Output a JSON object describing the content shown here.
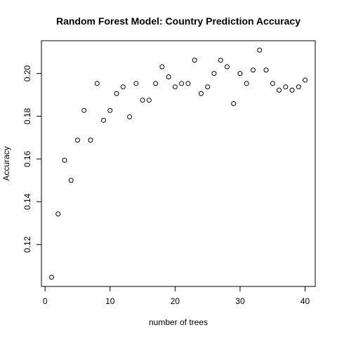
{
  "chart_data": {
    "type": "scatter",
    "title": "Random Forest Model: Country Prediction Accuracy",
    "xlabel": "number of trees",
    "ylabel": "Accuracy",
    "xlim": [
      -0.56,
      41.56
    ],
    "ylim": [
      0.1004,
      0.2153
    ],
    "x_ticks": [
      0,
      10,
      20,
      30,
      40
    ],
    "y_ticks": [
      0.12,
      0.14,
      0.16,
      0.18,
      0.2
    ],
    "x_tick_labels": [
      "0",
      "10",
      "20",
      "30",
      "40"
    ],
    "y_tick_labels": [
      "0.12",
      "0.14",
      "0.16",
      "0.18",
      "0.20"
    ],
    "grid": false,
    "marker": "open-circle",
    "series": [
      {
        "x": [
          1,
          2,
          3,
          4,
          5,
          6,
          7,
          8,
          9,
          10,
          11,
          12,
          13,
          14,
          15,
          16,
          17,
          18,
          19,
          20,
          21,
          22,
          23,
          24,
          25,
          26,
          27,
          28,
          29,
          30,
          31,
          32,
          33,
          34,
          35,
          36,
          37,
          38,
          39,
          40
        ],
        "y": [
          0.1047,
          0.1343,
          0.1594,
          0.15,
          0.1688,
          0.1827,
          0.1688,
          0.1953,
          0.1781,
          0.1827,
          0.1906,
          0.1937,
          0.1797,
          0.1953,
          0.1875,
          0.1875,
          0.1953,
          0.2031,
          0.1984,
          0.1937,
          0.1953,
          0.1953,
          0.2062,
          0.1906,
          0.1937,
          0.2,
          0.2062,
          0.2031,
          0.1859,
          0.2,
          0.1953,
          0.2016,
          0.2109,
          0.2016,
          0.1953,
          0.1922,
          0.1937,
          0.1922,
          0.1937,
          0.1969
        ]
      }
    ]
  }
}
